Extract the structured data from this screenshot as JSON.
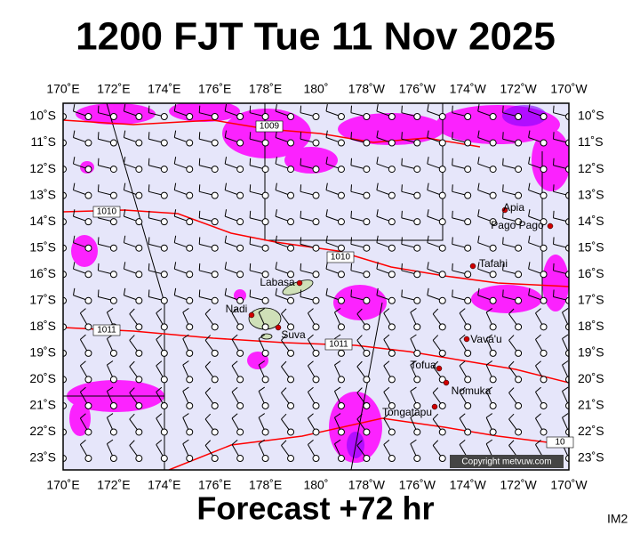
{
  "header": {
    "title": "1200 FJT Tue 11 Nov 2025"
  },
  "map": {
    "lon_labels": [
      "170˚E",
      "172˚E",
      "174˚E",
      "176˚E",
      "178˚E",
      "180˚",
      "178˚W",
      "176˚W",
      "174˚W",
      "172˚W",
      "170˚W"
    ],
    "lat_labels": [
      "10˚S",
      "11˚S",
      "12˚S",
      "13˚S",
      "14˚S",
      "15˚S",
      "16˚S",
      "17˚S",
      "18˚S",
      "19˚S",
      "20˚S",
      "21˚S",
      "22˚S",
      "23˚S"
    ],
    "places": [
      {
        "label": "Labasa"
      },
      {
        "label": "Nadi"
      },
      {
        "label": "Suva"
      },
      {
        "label": "Apia"
      },
      {
        "label": "Pago Pago"
      },
      {
        "label": "Tafahi"
      },
      {
        "label": "Vava'u"
      },
      {
        "label": "Tofua"
      },
      {
        "label": "Nomuka"
      },
      {
        "label": "Tongatapu"
      }
    ],
    "isobar_labels": [
      "1009",
      "1010",
      "1010",
      "1011",
      "1011",
      "10"
    ],
    "copyright": "Copyright metvuw.com"
  },
  "footer": {
    "forecast": "Forecast +72 hr",
    "code": "IM2"
  }
}
